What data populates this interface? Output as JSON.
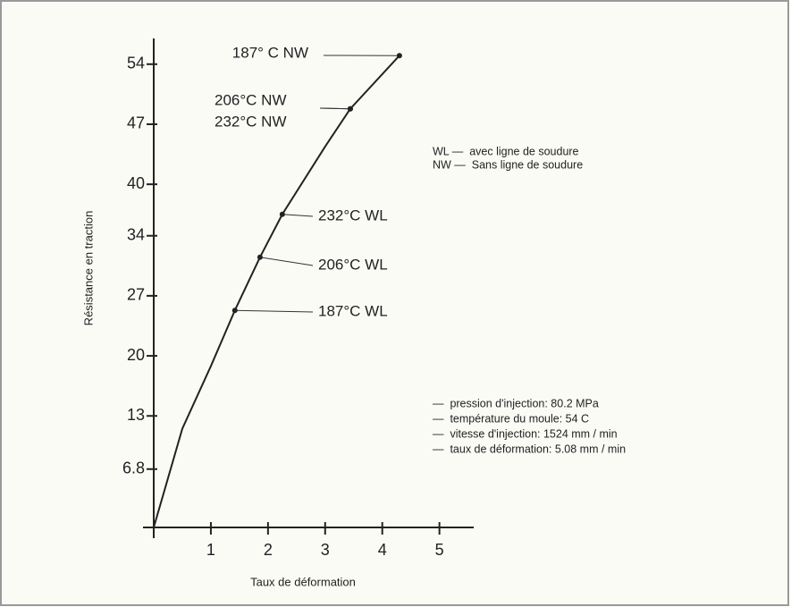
{
  "chart_data": {
    "type": "line",
    "y_label": "Résistance en traction",
    "x_label": "Taux de déformation",
    "x": [
      0,
      0.5,
      1,
      1.42,
      1.86,
      2.25,
      3,
      3.44,
      4.3
    ],
    "values": [
      0,
      11.5,
      18.8,
      25.3,
      31.5,
      36.5,
      44.4,
      48.8,
      55
    ],
    "color": "#222222",
    "xlim": [
      0,
      5.6
    ],
    "ylim": [
      0,
      57
    ],
    "xticks": [
      1,
      2,
      3,
      4,
      5
    ],
    "yticks": [
      6.8,
      13,
      20,
      27,
      34,
      40,
      47,
      54
    ],
    "annotations": [
      {
        "text": "187° C NW",
        "x": 4.3,
        "y": 55
      },
      {
        "text": "206°C NW",
        "x": 3.44,
        "y": 48.8
      },
      {
        "text": "232°C NW",
        "x": 3.44,
        "y": 48.8
      },
      {
        "text": "232°C WL",
        "x": 2.25,
        "y": 36.5
      },
      {
        "text": "206°C WL",
        "x": 1.86,
        "y": 31.5
      },
      {
        "text": "187°C WL",
        "x": 1.42,
        "y": 25.3
      }
    ],
    "notes": [
      "WL —  avec ligne de soudure",
      "NW —  Sans ligne de soudure"
    ],
    "conditions": [
      "—  pression d'injection: 80.2 MPa",
      "—  température du moule: 54 C",
      "—  vitesse d'injection: 1524 mm / min",
      "—  taux de déformation: 5.08 mm / min"
    ]
  }
}
